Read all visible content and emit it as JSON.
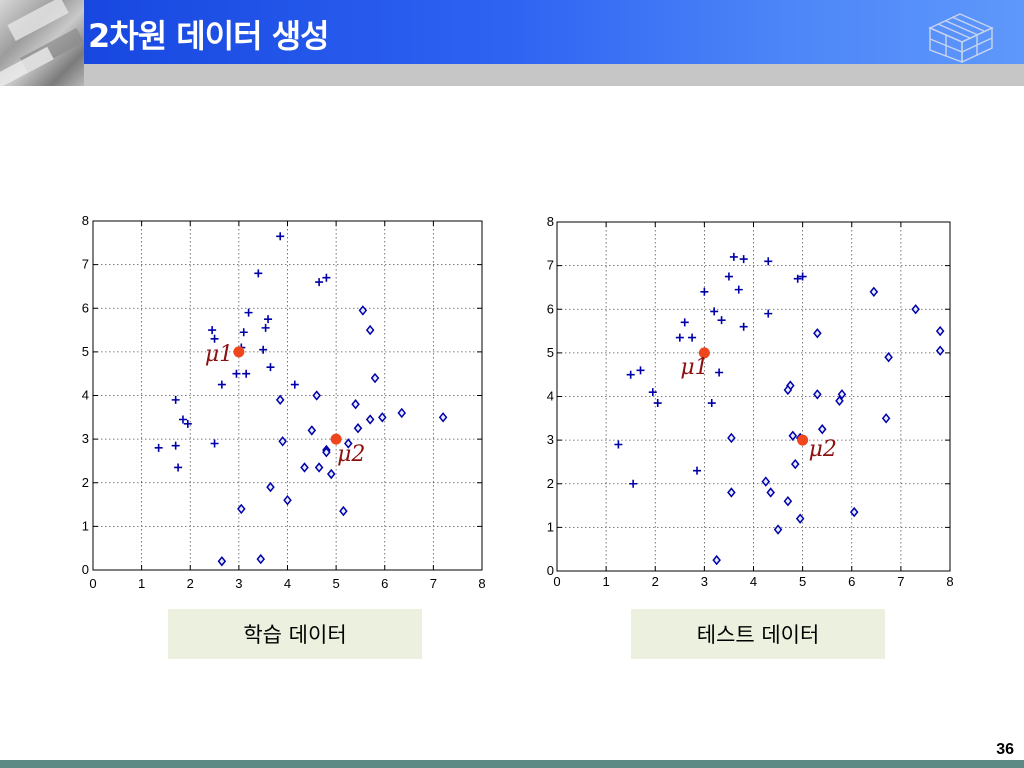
{
  "header": {
    "title": "2차원 데이터 생성",
    "icon": "isometric-cube-icon",
    "accent": "#1747e0"
  },
  "page_number": "36",
  "charts": {
    "train": {
      "caption": "학습 데이터"
    },
    "test": {
      "caption": "테스트 데이터"
    }
  },
  "chart_data": [
    {
      "type": "scatter",
      "title": "",
      "xlabel": "",
      "ylabel": "",
      "xlim": [
        0,
        8
      ],
      "ylim": [
        0,
        8
      ],
      "xticks": [
        "0",
        "1",
        "2",
        "3",
        "4",
        "5",
        "6",
        "7",
        "8"
      ],
      "yticks": [
        "0",
        "1",
        "2",
        "3",
        "4",
        "5",
        "6",
        "7",
        "8"
      ],
      "grid": true,
      "series": [
        {
          "marker": "plus",
          "color": "#0000a8",
          "points": [
            [
              3.85,
              7.65
            ],
            [
              3.4,
              6.8
            ],
            [
              4.8,
              6.7
            ],
            [
              4.65,
              6.6
            ],
            [
              3.2,
              5.9
            ],
            [
              3.6,
              5.75
            ],
            [
              2.45,
              5.5
            ],
            [
              3.1,
              5.45
            ],
            [
              3.55,
              5.55
            ],
            [
              2.5,
              5.3
            ],
            [
              3.05,
              5.1
            ],
            [
              3.5,
              5.05
            ],
            [
              3.65,
              4.65
            ],
            [
              2.95,
              4.5
            ],
            [
              3.15,
              4.5
            ],
            [
              2.65,
              4.25
            ],
            [
              4.15,
              4.25
            ],
            [
              1.7,
              3.9
            ],
            [
              1.85,
              3.45
            ],
            [
              1.95,
              3.35
            ],
            [
              1.35,
              2.8
            ],
            [
              1.7,
              2.85
            ],
            [
              2.5,
              2.9
            ],
            [
              1.75,
              2.35
            ]
          ]
        },
        {
          "marker": "diamond",
          "color": "#0000a8",
          "points": [
            [
              5.55,
              5.95
            ],
            [
              5.7,
              5.5
            ],
            [
              5.8,
              4.4
            ],
            [
              3.85,
              3.9
            ],
            [
              4.6,
              4.0
            ],
            [
              5.4,
              3.8
            ],
            [
              6.35,
              3.6
            ],
            [
              5.7,
              3.45
            ],
            [
              5.95,
              3.5
            ],
            [
              7.2,
              3.5
            ],
            [
              5.45,
              3.25
            ],
            [
              4.5,
              3.2
            ],
            [
              3.9,
              2.95
            ],
            [
              5.25,
              2.9
            ],
            [
              4.8,
              2.75
            ],
            [
              4.8,
              2.7
            ],
            [
              4.35,
              2.35
            ],
            [
              4.65,
              2.35
            ],
            [
              4.9,
              2.2
            ],
            [
              3.65,
              1.9
            ],
            [
              4.0,
              1.6
            ],
            [
              3.05,
              1.4
            ],
            [
              5.15,
              1.35
            ],
            [
              2.65,
              0.2
            ],
            [
              3.45,
              0.25
            ]
          ]
        }
      ],
      "centers": [
        {
          "label": "μ1",
          "x": 3,
          "y": 5,
          "color": "#f0461e"
        },
        {
          "label": "μ2",
          "x": 5,
          "y": 3,
          "color": "#f0461e"
        }
      ]
    },
    {
      "type": "scatter",
      "title": "",
      "xlabel": "",
      "ylabel": "",
      "xlim": [
        0,
        8
      ],
      "ylim": [
        0,
        8
      ],
      "xticks": [
        "0",
        "1",
        "2",
        "3",
        "4",
        "5",
        "6",
        "7",
        "8"
      ],
      "yticks": [
        "0",
        "1",
        "2",
        "3",
        "4",
        "5",
        "6",
        "7",
        "8"
      ],
      "grid": true,
      "series": [
        {
          "marker": "plus",
          "color": "#0000a8",
          "points": [
            [
              3.6,
              7.2
            ],
            [
              3.8,
              7.15
            ],
            [
              4.3,
              7.1
            ],
            [
              3.5,
              6.75
            ],
            [
              3.7,
              6.45
            ],
            [
              3.0,
              6.4
            ],
            [
              4.9,
              6.7
            ],
            [
              5.0,
              6.75
            ],
            [
              2.6,
              5.7
            ],
            [
              3.2,
              5.95
            ],
            [
              3.35,
              5.75
            ],
            [
              4.3,
              5.9
            ],
            [
              3.8,
              5.6
            ],
            [
              2.5,
              5.35
            ],
            [
              2.75,
              5.35
            ],
            [
              1.7,
              4.6
            ],
            [
              1.5,
              4.5
            ],
            [
              3.3,
              4.55
            ],
            [
              1.95,
              4.1
            ],
            [
              2.05,
              3.85
            ],
            [
              3.15,
              3.85
            ],
            [
              1.25,
              2.9
            ],
            [
              2.85,
              2.3
            ],
            [
              1.55,
              2.0
            ]
          ]
        },
        {
          "marker": "diamond",
          "color": "#0000a8",
          "points": [
            [
              6.45,
              6.4
            ],
            [
              7.3,
              6.0
            ],
            [
              7.8,
              5.5
            ],
            [
              5.3,
              5.45
            ],
            [
              6.75,
              4.9
            ],
            [
              7.8,
              5.05
            ],
            [
              4.75,
              4.25
            ],
            [
              4.7,
              4.15
            ],
            [
              5.3,
              4.05
            ],
            [
              5.8,
              4.05
            ],
            [
              5.75,
              3.9
            ],
            [
              6.7,
              3.5
            ],
            [
              5.4,
              3.25
            ],
            [
              4.8,
              3.1
            ],
            [
              3.55,
              3.05
            ],
            [
              4.95,
              3.05
            ],
            [
              4.85,
              2.45
            ],
            [
              4.25,
              2.05
            ],
            [
              4.35,
              1.8
            ],
            [
              3.55,
              1.8
            ],
            [
              4.7,
              1.6
            ],
            [
              6.05,
              1.35
            ],
            [
              4.95,
              1.2
            ],
            [
              4.5,
              0.95
            ],
            [
              3.25,
              0.25
            ]
          ]
        }
      ],
      "centers": [
        {
          "label": "μ1",
          "x": 3,
          "y": 5,
          "color": "#f0461e"
        },
        {
          "label": "μ2",
          "x": 5,
          "y": 3,
          "color": "#f0461e"
        }
      ]
    }
  ]
}
